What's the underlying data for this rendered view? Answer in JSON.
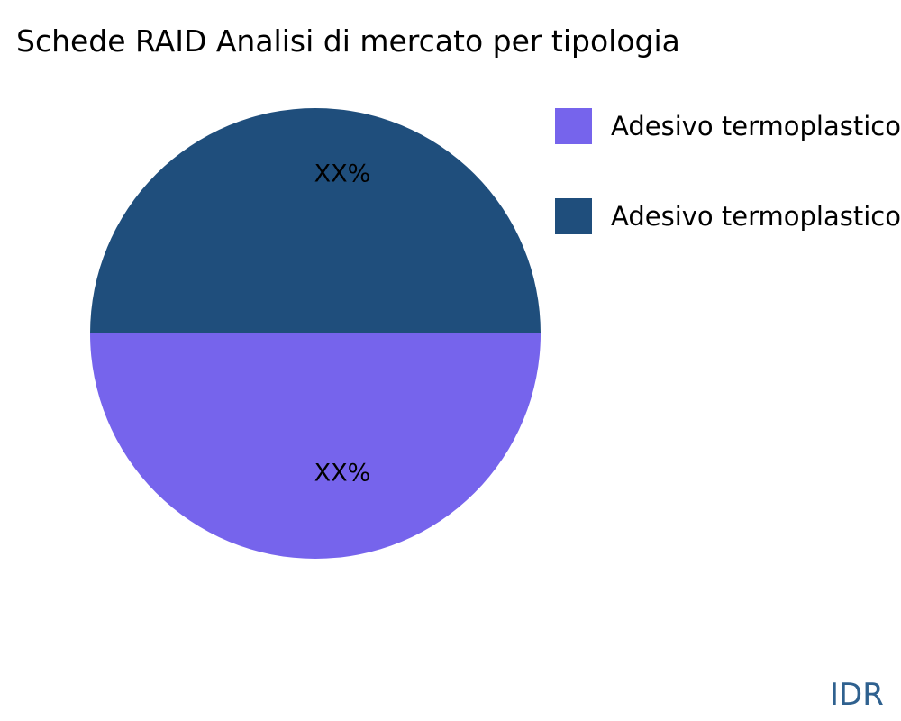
{
  "page": {
    "background": "#ffffff"
  },
  "title": "Schede RAID Analisi di mercato per tipologia",
  "watermark": "IDR",
  "colors": {
    "title_text": "#000000",
    "label_text": "#000000",
    "watermark": "#2F618F",
    "slice_purple": "#7664EC",
    "slice_darkblue": "#1F4E7C"
  },
  "legend": {
    "position": "upper-right",
    "labels_clipped_at_right_edge": true
  },
  "chart_data": {
    "type": "pie",
    "title": "Schede RAID Analisi di mercato per tipologia",
    "slices": [
      {
        "label": "Adesivo termoplastico",
        "value_label": "XX%",
        "value_pct": 50,
        "color": "#7664EC",
        "position": "bottom-half"
      },
      {
        "label": "Adesivo termoplastico",
        "value_label": "XX%",
        "value_pct": 50,
        "color": "#1F4E7C",
        "position": "top-half"
      }
    ],
    "legend_position": "upper-right",
    "grid": false,
    "watermark": "IDR"
  }
}
